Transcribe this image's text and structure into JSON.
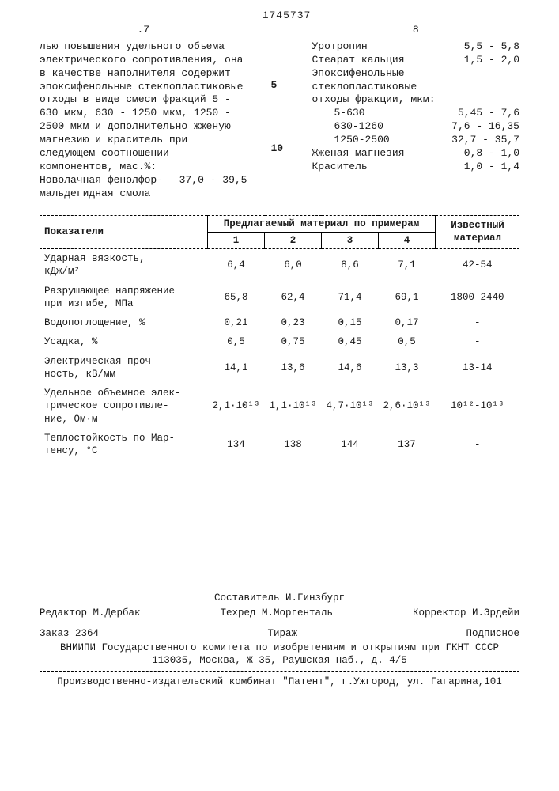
{
  "header": {
    "col_left": ".7",
    "patent": "1745737",
    "col_right": "8"
  },
  "left_text": "лью повышения удельного объема электрического сопротивления, она в качестве наполнителя содержит эпоксифенольные стеклопластиковые отходы в виде смеси фракций 5 - 630 мкм, 630 - 1250 мкм, 1250 - 2500 мкм и дополнительно жженую магнезию и краситель при следующем соотношении компонентов, мас.%:",
  "left_last": {
    "label": "Новолачная фенолфор-\nмальдегидная смола",
    "value": "37,0 - 39,5"
  },
  "line5": "5",
  "line10": "10",
  "right_items": [
    {
      "label": "Уротропин",
      "value": "5,5 - 5,8"
    },
    {
      "label": "Стеарат кальция",
      "value": "1,5 - 2,0"
    },
    {
      "label": "Эпоксифенольные",
      "value": ""
    },
    {
      "label": "стеклопластиковые",
      "value": ""
    },
    {
      "label": "отходы фракции, мкм:",
      "value": ""
    }
  ],
  "right_fractions": [
    {
      "label": "5-630",
      "value": "5,45 - 7,6"
    },
    {
      "label": "630-1260",
      "value": "7,6 - 16,35"
    },
    {
      "label": "1250-2500",
      "value": "32,7 - 35,7"
    }
  ],
  "right_tail": [
    {
      "label": "Жженая магнезия",
      "value": "0,8 - 1,0"
    },
    {
      "label": "Краситель",
      "value": "1,0 - 1,4"
    }
  ],
  "table": {
    "head_param": "Показатели",
    "head_group": "Предлагаемый материал по примерам",
    "head_known": "Известный материал",
    "cols": [
      "1",
      "2",
      "3",
      "4"
    ],
    "rows": [
      {
        "p": "Ударная вязкость,\nкДж/м²",
        "v": [
          "6,4",
          "6,0",
          "8,6",
          "7,1",
          "42-54"
        ]
      },
      {
        "p": "Разрушающее напряжение\nпри изгибе, МПа",
        "v": [
          "65,8",
          "62,4",
          "71,4",
          "69,1",
          "1800-2440"
        ]
      },
      {
        "p": "Водопоглощение, %",
        "v": [
          "0,21",
          "0,23",
          "0,15",
          "0,17",
          "-"
        ]
      },
      {
        "p": "Усадка, %",
        "v": [
          "0,5",
          "0,75",
          "0,45",
          "0,5",
          "-"
        ]
      },
      {
        "p": "Электрическая проч-\nность, кВ/мм",
        "v": [
          "14,1",
          "13,6",
          "14,6",
          "13,3",
          "13-14"
        ]
      },
      {
        "p": "Удельное объемное элек-\nтрическое сопротивле-\nние, Ом·м",
        "v": [
          "2,1·10¹³",
          "1,1·10¹³",
          "4,7·10¹³",
          "2,6·10¹³",
          "10¹²-10¹³"
        ]
      },
      {
        "p": "Теплостойкость по Мар-\nтенсу, °С",
        "v": [
          "134",
          "138",
          "144",
          "137",
          "-"
        ]
      }
    ]
  },
  "footer": {
    "compiler": "Составитель И.Гинзбург",
    "editor": "Редактор М.Дербак",
    "techred": "Техред М.Моргенталь",
    "corrector": "Корректор И.Эрдейи",
    "order": "Заказ 2364",
    "tirage": "Тираж",
    "sub": "Подписное",
    "org": "ВНИИПИ Государственного комитета по изобретениям и открытиям при ГКНТ СССР",
    "addr": "113035, Москва, Ж-35, Раушская наб., д. 4/5",
    "plant": "Производственно-издательский комбинат \"Патент\", г.Ужгород, ул. Гагарина,101"
  }
}
